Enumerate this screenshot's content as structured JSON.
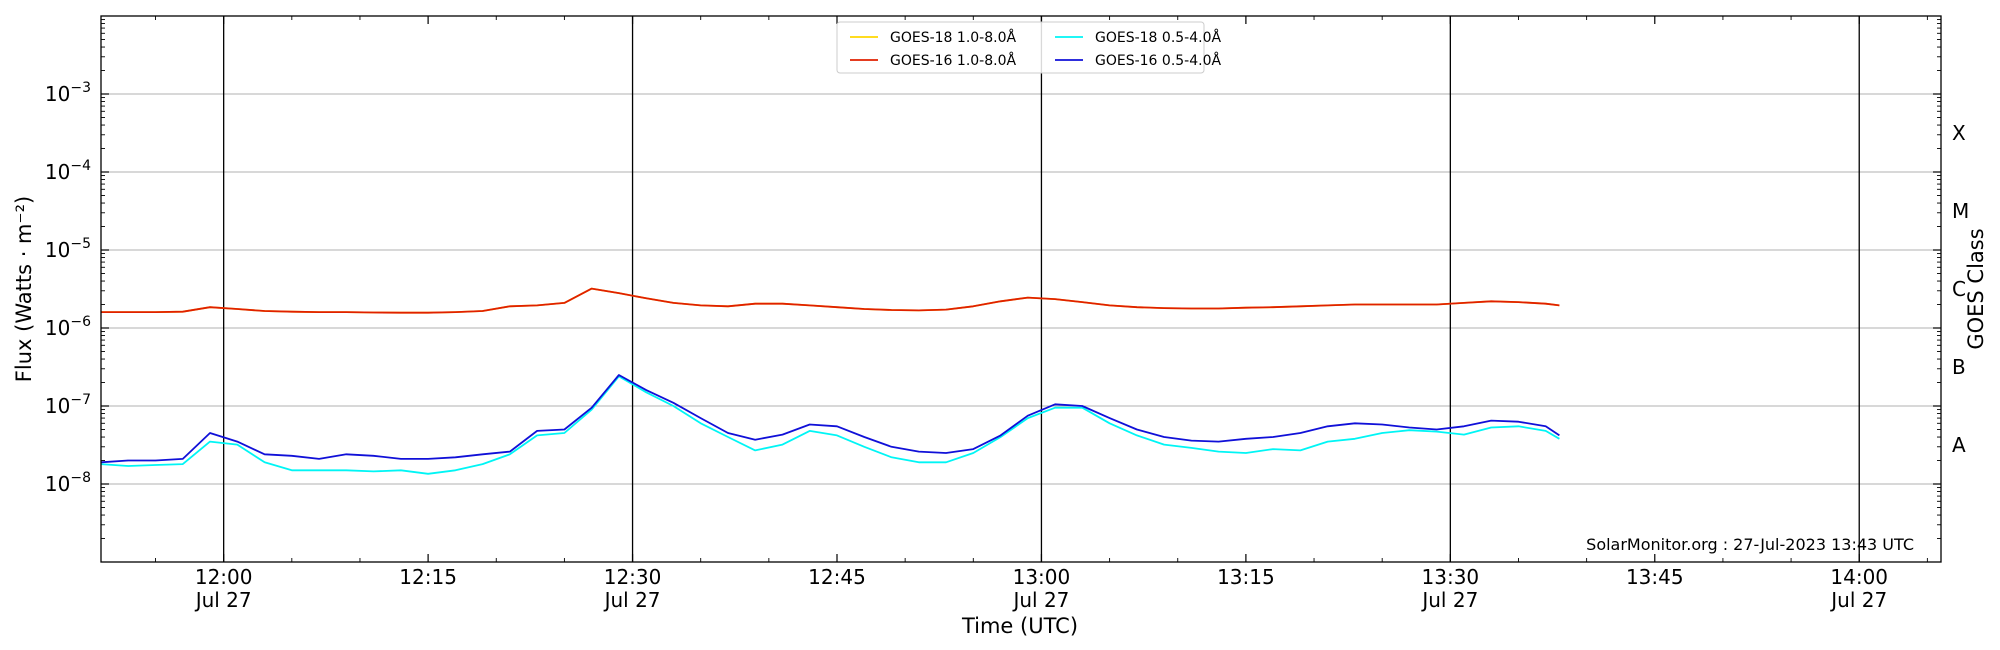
{
  "chart_data": {
    "type": "line",
    "title": "",
    "xlabel": "Time (UTC)",
    "ylabel": "Flux (Watts · m⁻²)",
    "ylabel_right": "GOES Class",
    "yscale": "log",
    "ylim": [
      1e-09,
      0.01
    ],
    "y_ticks": [
      {
        "value": 1e-08,
        "base": "10",
        "exp": "−8"
      },
      {
        "value": 1e-07,
        "base": "10",
        "exp": "−7"
      },
      {
        "value": 1e-06,
        "base": "10",
        "exp": "−6"
      },
      {
        "value": 1e-05,
        "base": "10",
        "exp": "−5"
      },
      {
        "value": 0.0001,
        "base": "10",
        "exp": "−4"
      },
      {
        "value": 0.001,
        "base": "10",
        "exp": "−3"
      }
    ],
    "goes_classes": [
      {
        "label": "A",
        "value": 3.16e-08
      },
      {
        "label": "B",
        "value": 3.16e-07
      },
      {
        "label": "C",
        "value": 3.16e-06
      },
      {
        "label": "M",
        "value": 3.16e-05
      },
      {
        "label": "X",
        "value": 0.000316
      }
    ],
    "xlim": [
      "11:51",
      "14:06"
    ],
    "x_ticks": [
      {
        "time": "12:00",
        "label": "12:00",
        "date": "Jul 27",
        "major": true
      },
      {
        "time": "12:15",
        "label": "12:15",
        "date": "",
        "major": false
      },
      {
        "time": "12:30",
        "label": "12:30",
        "date": "Jul 27",
        "major": true
      },
      {
        "time": "12:45",
        "label": "12:45",
        "date": "",
        "major": false
      },
      {
        "time": "13:00",
        "label": "13:00",
        "date": "Jul 27",
        "major": true
      },
      {
        "time": "13:15",
        "label": "13:15",
        "date": "",
        "major": false
      },
      {
        "time": "13:30",
        "label": "13:30",
        "date": "Jul 27",
        "major": true
      },
      {
        "time": "13:45",
        "label": "13:45",
        "date": "",
        "major": false
      },
      {
        "time": "14:00",
        "label": "14:00",
        "date": "Jul 27",
        "major": true
      }
    ],
    "grid": "horizontal at decades; vertical lines at 30-minute marks",
    "legend": {
      "placement": "top-center",
      "columns": 2
    },
    "annotation": "SolarMonitor.org : 27-Jul-2023 13:43 UTC",
    "x": [
      "11:51",
      "11:53",
      "11:55",
      "11:57",
      "11:59",
      "12:01",
      "12:03",
      "12:05",
      "12:07",
      "12:09",
      "12:11",
      "12:13",
      "12:15",
      "12:17",
      "12:19",
      "12:21",
      "12:23",
      "12:25",
      "12:27",
      "12:29",
      "12:31",
      "12:33",
      "12:35",
      "12:37",
      "12:39",
      "12:41",
      "12:43",
      "12:45",
      "12:47",
      "12:49",
      "12:51",
      "12:53",
      "12:55",
      "12:57",
      "12:59",
      "13:01",
      "13:03",
      "13:05",
      "13:07",
      "13:09",
      "13:11",
      "13:13",
      "13:15",
      "13:17",
      "13:19",
      "13:21",
      "13:23",
      "13:25",
      "13:27",
      "13:29",
      "13:31",
      "13:33",
      "13:35",
      "13:37",
      "13:38"
    ],
    "series": [
      {
        "name": "GOES-18 1.0-8.0Å",
        "color": "#ffd700",
        "values": [
          1.6e-06,
          1.6e-06,
          1.6e-06,
          1.62e-06,
          1.85e-06,
          1.75e-06,
          1.65e-06,
          1.62e-06,
          1.6e-06,
          1.6e-06,
          1.58e-06,
          1.57e-06,
          1.57e-06,
          1.6e-06,
          1.65e-06,
          1.9e-06,
          1.95e-06,
          2.1e-06,
          3.2e-06,
          2.8e-06,
          2.4e-06,
          2.1e-06,
          1.95e-06,
          1.9e-06,
          2.05e-06,
          2.05e-06,
          1.95e-06,
          1.85e-06,
          1.75e-06,
          1.7e-06,
          1.68e-06,
          1.72e-06,
          1.9e-06,
          2.2e-06,
          2.45e-06,
          2.35e-06,
          2.15e-06,
          1.95e-06,
          1.85e-06,
          1.8e-06,
          1.78e-06,
          1.78e-06,
          1.82e-06,
          1.85e-06,
          1.9e-06,
          1.95e-06,
          2e-06,
          2e-06,
          2e-06,
          2e-06,
          2.1e-06,
          2.2e-06,
          2.15e-06,
          2.05e-06,
          1.95e-06
        ]
      },
      {
        "name": "GOES-16 1.0-8.0Å",
        "color": "#e02000",
        "values": [
          1.6e-06,
          1.6e-06,
          1.6e-06,
          1.62e-06,
          1.85e-06,
          1.75e-06,
          1.65e-06,
          1.62e-06,
          1.6e-06,
          1.6e-06,
          1.58e-06,
          1.57e-06,
          1.57e-06,
          1.6e-06,
          1.65e-06,
          1.9e-06,
          1.95e-06,
          2.1e-06,
          3.2e-06,
          2.8e-06,
          2.4e-06,
          2.1e-06,
          1.95e-06,
          1.9e-06,
          2.05e-06,
          2.05e-06,
          1.95e-06,
          1.85e-06,
          1.75e-06,
          1.7e-06,
          1.68e-06,
          1.72e-06,
          1.9e-06,
          2.2e-06,
          2.45e-06,
          2.35e-06,
          2.15e-06,
          1.95e-06,
          1.85e-06,
          1.8e-06,
          1.78e-06,
          1.78e-06,
          1.82e-06,
          1.85e-06,
          1.9e-06,
          1.95e-06,
          2e-06,
          2e-06,
          2e-06,
          2e-06,
          2.1e-06,
          2.2e-06,
          2.15e-06,
          2.05e-06,
          1.95e-06
        ]
      },
      {
        "name": "GOES-18 0.5-4.0Å",
        "color": "#00f5f5",
        "values": [
          1.8e-08,
          1.7e-08,
          1.75e-08,
          1.8e-08,
          3.5e-08,
          3.2e-08,
          1.9e-08,
          1.5e-08,
          1.5e-08,
          1.5e-08,
          1.45e-08,
          1.5e-08,
          1.35e-08,
          1.5e-08,
          1.8e-08,
          2.4e-08,
          4.2e-08,
          4.5e-08,
          9e-08,
          2.4e-07,
          1.5e-07,
          1e-07,
          6e-08,
          4e-08,
          2.7e-08,
          3.2e-08,
          4.8e-08,
          4.2e-08,
          3e-08,
          2.2e-08,
          1.9e-08,
          1.9e-08,
          2.5e-08,
          4e-08,
          7e-08,
          9.5e-08,
          9.5e-08,
          6e-08,
          4.2e-08,
          3.2e-08,
          2.9e-08,
          2.6e-08,
          2.5e-08,
          2.8e-08,
          2.7e-08,
          3.5e-08,
          3.8e-08,
          4.5e-08,
          4.9e-08,
          4.7e-08,
          4.3e-08,
          5.3e-08,
          5.5e-08,
          4.8e-08,
          3.8e-08
        ]
      },
      {
        "name": "GOES-16 0.5-4.0Å",
        "color": "#1010d8",
        "values": [
          1.9e-08,
          2e-08,
          2e-08,
          2.1e-08,
          4.5e-08,
          3.5e-08,
          2.4e-08,
          2.3e-08,
          2.1e-08,
          2.4e-08,
          2.3e-08,
          2.1e-08,
          2.1e-08,
          2.2e-08,
          2.4e-08,
          2.6e-08,
          4.8e-08,
          5e-08,
          9.5e-08,
          2.5e-07,
          1.6e-07,
          1.1e-07,
          7e-08,
          4.5e-08,
          3.7e-08,
          4.3e-08,
          5.8e-08,
          5.5e-08,
          4e-08,
          3e-08,
          2.6e-08,
          2.5e-08,
          2.8e-08,
          4.2e-08,
          7.5e-08,
          1.05e-07,
          1e-07,
          7e-08,
          5e-08,
          4e-08,
          3.6e-08,
          3.5e-08,
          3.8e-08,
          4e-08,
          4.5e-08,
          5.5e-08,
          6e-08,
          5.8e-08,
          5.3e-08,
          5e-08,
          5.5e-08,
          6.5e-08,
          6.3e-08,
          5.5e-08,
          4.2e-08
        ]
      }
    ]
  }
}
